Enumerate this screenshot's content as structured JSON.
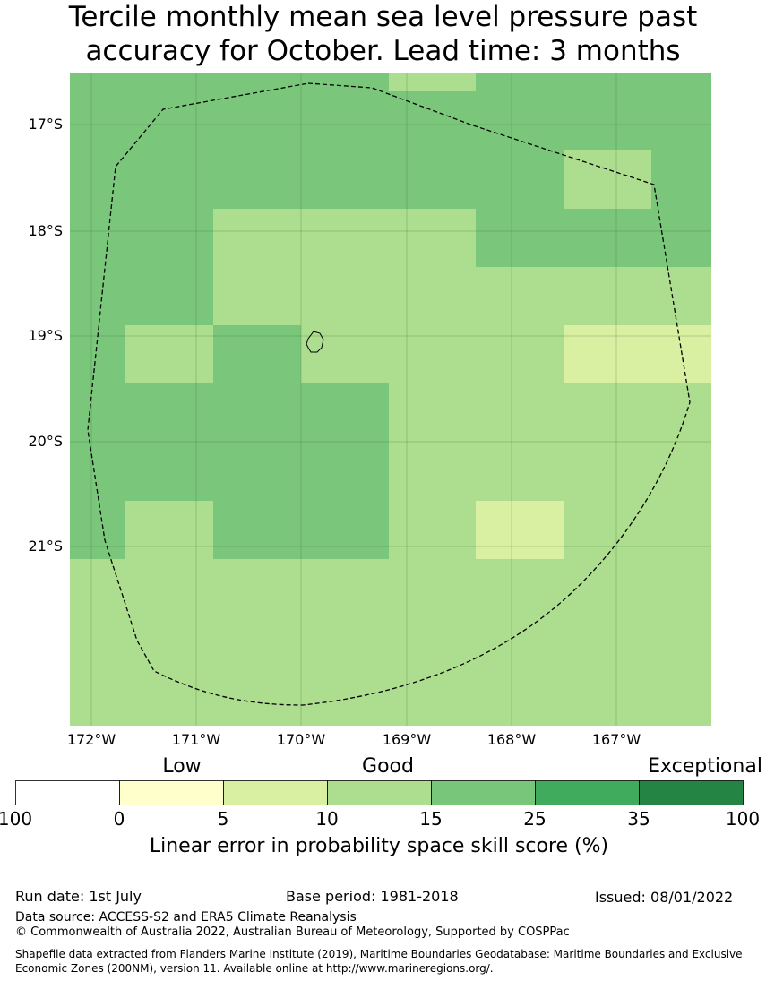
{
  "title": {
    "line1": "Tercile monthly mean sea level pressure past",
    "line2": "accuracy for October. Lead time: 3 months"
  },
  "map": {
    "lat_labels": [
      "17°S",
      "18°S",
      "19°S",
      "20°S",
      "21°S"
    ],
    "lon_labels": [
      "172°W",
      "171°W",
      "170°W",
      "169°W",
      "168°W",
      "167°W"
    ],
    "colors": {
      "c1": "#7ac77b",
      "c2": "#addd8e",
      "c3": "#d9f0a3"
    }
  },
  "legend": {
    "categories": [
      "Low",
      "Good",
      "Exceptional"
    ],
    "ticks": [
      "100",
      "0",
      "5",
      "10",
      "15",
      "25",
      "35",
      "100"
    ],
    "colors": [
      "#ffffff",
      "#ffffcc",
      "#d9f0a3",
      "#addd8e",
      "#78c679",
      "#41ab5d",
      "#238443"
    ],
    "label": "Linear error in probability space skill score (%)"
  },
  "footer": {
    "run_date": "Run date: 1st July",
    "base_period": "Base period: 1981-2018",
    "issued": "Issued: 08/01/2022",
    "data_source": "Data source: ACCESS-S2 and ERA5 Climate Reanalysis",
    "copyright": "© Commonwealth of Australia 2022, Australian Bureau of Meteorology, Supported by COSPPac",
    "shapefile": "Shapefile data extracted from Flanders Marine Institute (2019), Maritime Boundaries Geodatabase: Maritime Boundaries and Exclusive Economic Zones (200NM), version 11. Available online at http://www.marineregions.org/."
  }
}
